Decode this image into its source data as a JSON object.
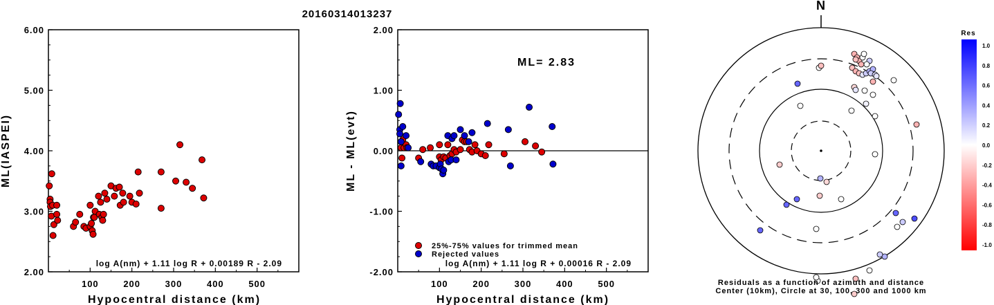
{
  "title": "20160314013237",
  "chart_data": [
    {
      "type": "scatter",
      "ylabel": "ML(IASPEI)",
      "xlabel": "Hypocentral distance (km)",
      "xlim": [
        0,
        600
      ],
      "ylim": [
        2.0,
        6.0
      ],
      "xticks": [
        "100",
        "200",
        "300",
        "400",
        "500"
      ],
      "yticks": [
        "2.00",
        "3.00",
        "4.00",
        "5.00",
        "6.00"
      ],
      "formula": "log A(nm) + 1.11 log R + 0.00189 R - 2.09",
      "points": [
        [
          2,
          3.42
        ],
        [
          4,
          3.2
        ],
        [
          4,
          3.15
        ],
        [
          5,
          3.08
        ],
        [
          8,
          3.62
        ],
        [
          7,
          2.92
        ],
        [
          10,
          3.1
        ],
        [
          11,
          2.6
        ],
        [
          13,
          2.78
        ],
        [
          20,
          3.1
        ],
        [
          20,
          2.95
        ],
        [
          22,
          2.85
        ],
        [
          60,
          2.75
        ],
        [
          65,
          2.82
        ],
        [
          75,
          2.95
        ],
        [
          85,
          2.75
        ],
        [
          90,
          2.72
        ],
        [
          100,
          2.75
        ],
        [
          100,
          3.1
        ],
        [
          103,
          2.8
        ],
        [
          105,
          2.68
        ],
        [
          107,
          2.62
        ],
        [
          108,
          2.9
        ],
        [
          110,
          2.9
        ],
        [
          112,
          3.0
        ],
        [
          120,
          3.25
        ],
        [
          122,
          2.95
        ],
        [
          125,
          3.15
        ],
        [
          128,
          2.9
        ],
        [
          130,
          2.85
        ],
        [
          132,
          2.95
        ],
        [
          135,
          3.3
        ],
        [
          140,
          3.2
        ],
        [
          150,
          3.42
        ],
        [
          158,
          3.25
        ],
        [
          162,
          3.38
        ],
        [
          170,
          3.4
        ],
        [
          172,
          3.1
        ],
        [
          178,
          3.3
        ],
        [
          180,
          3.15
        ],
        [
          195,
          3.25
        ],
        [
          200,
          3.15
        ],
        [
          210,
          3.12
        ],
        [
          215,
          3.65
        ],
        [
          218,
          3.3
        ],
        [
          270,
          3.65
        ],
        [
          270,
          3.05
        ],
        [
          305,
          3.5
        ],
        [
          315,
          4.1
        ],
        [
          330,
          3.48
        ],
        [
          345,
          3.38
        ],
        [
          368,
          3.85
        ],
        [
          372,
          3.22
        ]
      ]
    },
    {
      "type": "scatter",
      "ylabel": "ML - ML(evt)",
      "xlabel": "Hypocentral distance (km)",
      "xlim": [
        0,
        600
      ],
      "ylim": [
        -2.0,
        2.0
      ],
      "xticks": [
        "100",
        "200",
        "300",
        "400",
        "500"
      ],
      "yticks": [
        "-2.00",
        "-1.00",
        "0.00",
        "1.00",
        "2.00"
      ],
      "annotation": "ML= 2.83",
      "formula": "log A(nm) + 1.11 log R + 0.00016 R - 2.09",
      "legend": {
        "placement": "bottom-left",
        "entries": [
          "25%-75% values for trimmed mean",
          "Rejected values"
        ]
      },
      "series": [
        {
          "name": "25%-75% values for trimmed mean",
          "color": "#dd0000",
          "points": [
            [
              8,
              0.05
            ],
            [
              10,
              -0.12
            ],
            [
              12,
              0.18
            ],
            [
              15,
              0.05
            ],
            [
              20,
              0.1
            ],
            [
              22,
              0.05
            ],
            [
              50,
              -0.12
            ],
            [
              60,
              0.02
            ],
            [
              78,
              0.05
            ],
            [
              100,
              0.1
            ],
            [
              100,
              -0.1
            ],
            [
              104,
              -0.15
            ],
            [
              110,
              -0.1
            ],
            [
              115,
              -0.12
            ],
            [
              120,
              0.1
            ],
            [
              125,
              -0.08
            ],
            [
              130,
              -0.05
            ],
            [
              135,
              0.02
            ],
            [
              140,
              -0.02
            ],
            [
              150,
              0.02
            ],
            [
              155,
              0.18
            ],
            [
              160,
              0.15
            ],
            [
              165,
              0.15
            ],
            [
              172,
              0.02
            ],
            [
              178,
              -0.02
            ],
            [
              185,
              0.1
            ],
            [
              190,
              0.0
            ],
            [
              200,
              -0.05
            ],
            [
              210,
              -0.08
            ],
            [
              218,
              0.1
            ],
            [
              255,
              -0.05
            ],
            [
              305,
              0.15
            ],
            [
              330,
              0.08
            ],
            [
              345,
              -0.02
            ]
          ]
        },
        {
          "name": "Rejected values",
          "color": "#0000cc",
          "points": [
            [
              2,
              0.6
            ],
            [
              5,
              0.35
            ],
            [
              5,
              0.28
            ],
            [
              6,
              0.78
            ],
            [
              8,
              0.15
            ],
            [
              8,
              -0.25
            ],
            [
              12,
              0.4
            ],
            [
              20,
              0.25
            ],
            [
              25,
              0.05
            ],
            [
              55,
              -0.18
            ],
            [
              80,
              -0.22
            ],
            [
              85,
              -0.25
            ],
            [
              92,
              -0.25
            ],
            [
              100,
              -0.28
            ],
            [
              102,
              -0.22
            ],
            [
              105,
              -0.3
            ],
            [
              108,
              -0.38
            ],
            [
              110,
              -0.32
            ],
            [
              120,
              0.25
            ],
            [
              122,
              -0.18
            ],
            [
              128,
              -0.15
            ],
            [
              130,
              0.2
            ],
            [
              135,
              0.25
            ],
            [
              140,
              -0.15
            ],
            [
              150,
              0.35
            ],
            [
              160,
              0.25
            ],
            [
              170,
              0.15
            ],
            [
              178,
              0.3
            ],
            [
              215,
              0.45
            ],
            [
              265,
              0.35
            ],
            [
              270,
              -0.25
            ],
            [
              315,
              0.72
            ],
            [
              370,
              0.4
            ],
            [
              372,
              -0.22
            ]
          ]
        }
      ]
    },
    {
      "type": "polar-scatter",
      "north_label": "N",
      "caption_line1": "Residuals as a function of azimuth and distance",
      "caption_line2": "Center (10km), Circle at 30, 100, 300 and 1000 km",
      "colorbar": {
        "title": "Res",
        "ticks": [
          "1.0",
          "0.8",
          "0.6",
          "0.4",
          "0.2",
          "0.0",
          "-0.2",
          "-0.4",
          "-0.6",
          "-0.8",
          "-1.0"
        ],
        "max_color": "#0000ff",
        "zero_color": "#ffffff",
        "min_color": "#ff0000"
      },
      "points": [
        [
          -34,
          97,
          0.6
        ],
        [
          -3,
          120,
          0.0
        ],
        [
          63,
          87,
          0.0
        ],
        [
          75,
          81,
          0.0
        ],
        [
          -30,
          65,
          0.0
        ],
        [
          0,
          123,
          -0.25
        ],
        [
          78,
          -5,
          0.0
        ],
        [
          65,
          68,
          0.05
        ],
        [
          48,
          140,
          -0.3
        ],
        [
          52,
          135,
          -0.3
        ],
        [
          55,
          130,
          -0.3
        ],
        [
          58,
          125,
          -0.3
        ],
        [
          50,
          132,
          -0.25
        ],
        [
          60,
          135,
          0.0
        ],
        [
          70,
          130,
          0.2
        ],
        [
          45,
          120,
          -0.25
        ],
        [
          50,
          115,
          -0.3
        ],
        [
          55,
          112,
          -0.25
        ],
        [
          60,
          110,
          0.1
        ],
        [
          65,
          112,
          0.2
        ],
        [
          70,
          115,
          0.3
        ],
        [
          75,
          118,
          0.3
        ],
        [
          72,
          112,
          0.2
        ],
        [
          78,
          110,
          0.15
        ],
        [
          80,
          108,
          0.1
        ],
        [
          62,
          140,
          0.0
        ],
        [
          66,
          125,
          0.0
        ],
        [
          75,
          100,
          -0.3
        ],
        [
          105,
          102,
          0.0
        ],
        [
          48,
          92,
          -0.15
        ],
        [
          50,
          88,
          0.1
        ],
        [
          44,
          58,
          0.0
        ],
        [
          78,
          50,
          0.0
        ],
        [
          138,
          38,
          -0.3
        ],
        [
          -60,
          -20,
          -0.2
        ],
        [
          -35,
          -70,
          0.6
        ],
        [
          -88,
          -115,
          0.6
        ],
        [
          -1,
          -40,
          0.3
        ],
        [
          8,
          -45,
          -0.15
        ],
        [
          -2,
          -65,
          -0.2
        ],
        [
          -7,
          -113,
          0.0
        ],
        [
          29,
          -70,
          0.0
        ],
        [
          -50,
          -78,
          0.6
        ],
        [
          135,
          -98,
          0.7
        ],
        [
          108,
          -90,
          0.6
        ],
        [
          110,
          -110,
          0.0
        ],
        [
          118,
          -103,
          0.2
        ],
        [
          92,
          -153,
          0.3
        ],
        [
          85,
          -150,
          0.2
        ],
        [
          70,
          -173,
          0.0
        ],
        [
          50,
          -185,
          -0.25
        ],
        [
          48,
          -207,
          -0.2
        ],
        [
          -5,
          -188,
          0.0
        ],
        [
          -7,
          -183,
          0.0
        ]
      ]
    }
  ]
}
